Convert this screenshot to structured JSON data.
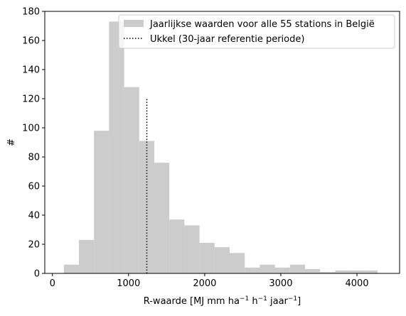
{
  "chart_data": {
    "type": "bar",
    "subtype": "histogram",
    "bin_edges": [
      150,
      348,
      546,
      744,
      942,
      1140,
      1338,
      1536,
      1734,
      1932,
      2130,
      2328,
      2526,
      2724,
      2922,
      3120,
      3318,
      3516,
      3714,
      3912,
      4110,
      4270
    ],
    "values": [
      6,
      23,
      98,
      173,
      128,
      91,
      76,
      37,
      33,
      21,
      18,
      14,
      4,
      6,
      4,
      6,
      3,
      1,
      2,
      2,
      2
    ],
    "bar_color": "#cccccc",
    "reference_line": {
      "x": 1240,
      "y_top": 120,
      "color": "#000000",
      "style": "dotted"
    },
    "xlabel_parts": [
      "R-waarde [MJ mm ha",
      "−1",
      " h",
      "−1",
      " jaar",
      "−1",
      "]"
    ],
    "ylabel": "#",
    "xlim": [
      -100,
      4560
    ],
    "ylim": [
      0,
      180
    ],
    "xticks": [
      "0",
      "1000",
      "2000",
      "3000",
      "4000"
    ],
    "yticks": [
      "0",
      "20",
      "40",
      "60",
      "80",
      "100",
      "120",
      "140",
      "160",
      "180"
    ],
    "legend": {
      "placement": "upper-right",
      "entries": [
        "Jaarlijkse waarden voor alle 55 stations in België",
        "Ukkel (30-jaar referentie periode)"
      ]
    },
    "grid": false
  }
}
